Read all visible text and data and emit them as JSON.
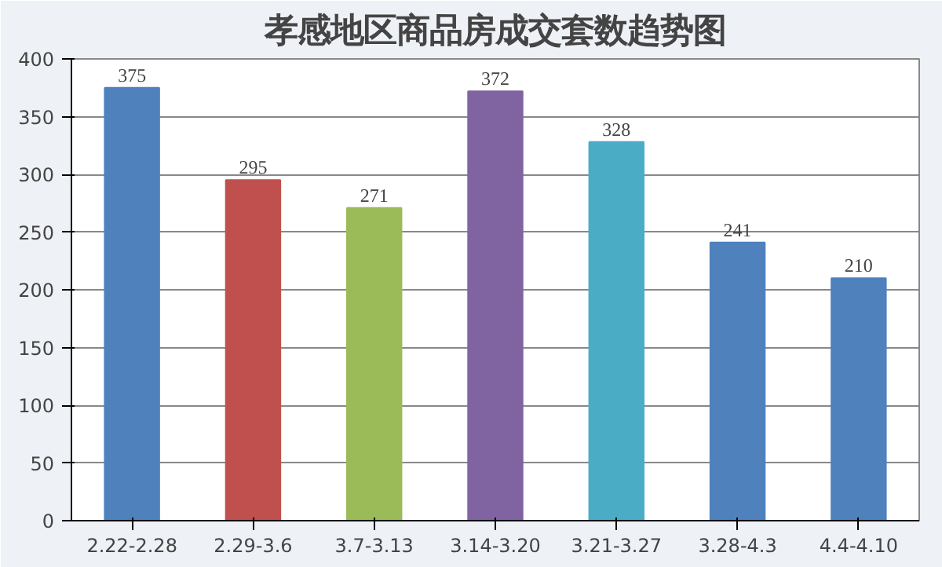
{
  "chart_data": {
    "type": "bar",
    "title": "孝感地区商品房成交套数趋势图",
    "categories": [
      "2.22-2.28",
      "2.29-3.6",
      "3.7-3.13",
      "3.14-3.20",
      "3.21-3.27",
      "3.28-4.3",
      "4.4-4.10"
    ],
    "values": [
      375,
      295,
      271,
      372,
      328,
      241,
      210
    ],
    "colors": [
      "#4f81bd",
      "#c0504d",
      "#9bbb59",
      "#8064a2",
      "#4bacc6",
      "#4f81bd",
      "#4f81bd"
    ],
    "ylim": [
      0,
      400
    ],
    "yticks": [
      0,
      50,
      100,
      150,
      200,
      250,
      300,
      350,
      400
    ],
    "grid": "y",
    "data_labels": true
  }
}
